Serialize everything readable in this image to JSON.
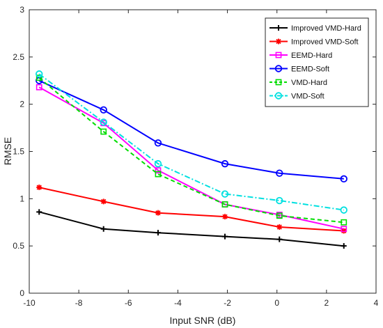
{
  "chart_data": {
    "type": "line",
    "title": "",
    "xlabel": "Input SNR (dB)",
    "ylabel": "RMSE",
    "xlim": [
      -10,
      4
    ],
    "ylim": [
      0,
      3
    ],
    "xticks": [
      -10,
      -8,
      -6,
      -4,
      -2,
      0,
      2,
      4
    ],
    "yticks": [
      0,
      0.5,
      1,
      1.5,
      2,
      2.5,
      3
    ],
    "xtick_labels": [
      "-10",
      "-8",
      "-6",
      "-4",
      "-2",
      "0",
      "2",
      "4"
    ],
    "ytick_labels": [
      "0",
      "0.5",
      "1",
      "1.5",
      "2",
      "2.5",
      "3"
    ],
    "grid": false,
    "legend_position": "top-right",
    "x": [
      -9.6,
      -7.0,
      -4.8,
      -2.1,
      0.1,
      2.7
    ],
    "series": [
      {
        "name": "Improved VMD-Hard",
        "values": [
          0.86,
          0.68,
          0.64,
          0.6,
          0.57,
          0.5
        ],
        "color": "#000000",
        "dash": "solid",
        "marker": "plus"
      },
      {
        "name": "Improved VMD-Soft",
        "values": [
          1.12,
          0.97,
          0.85,
          0.81,
          0.7,
          0.66
        ],
        "color": "#ff0000",
        "dash": "solid",
        "marker": "star"
      },
      {
        "name": "EEMD-Hard",
        "values": [
          2.18,
          1.8,
          1.3,
          0.94,
          0.83,
          0.68
        ],
        "color": "#ff00ff",
        "dash": "solid",
        "marker": "square"
      },
      {
        "name": "EEMD-Soft",
        "values": [
          2.25,
          1.94,
          1.59,
          1.37,
          1.27,
          1.21
        ],
        "color": "#0000ff",
        "dash": "solid",
        "marker": "circle"
      },
      {
        "name": "VMD-Hard",
        "values": [
          2.28,
          1.71,
          1.26,
          0.94,
          0.82,
          0.75
        ],
        "color": "#00dd00",
        "dash": "dashed",
        "marker": "square"
      },
      {
        "name": "VMD-Soft",
        "values": [
          2.32,
          1.81,
          1.37,
          1.05,
          0.98,
          0.88
        ],
        "color": "#00e0e0",
        "dash": "dashdot",
        "marker": "circle"
      }
    ]
  }
}
